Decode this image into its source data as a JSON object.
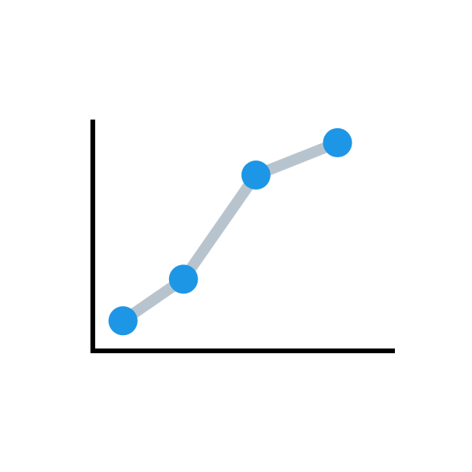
{
  "chart_data": {
    "type": "line",
    "title": "",
    "xlabel": "",
    "ylabel": "",
    "xlim": [
      0,
      100
    ],
    "ylim": [
      0,
      100
    ],
    "grid": false,
    "tick_labels": false,
    "series": [
      {
        "x": [
          10,
          30,
          54,
          81
        ],
        "values": [
          13,
          31,
          76,
          90
        ]
      }
    ],
    "colors": {
      "axis": "#000000",
      "line": "#b8c4cd",
      "marker": "#1e96e6"
    }
  }
}
